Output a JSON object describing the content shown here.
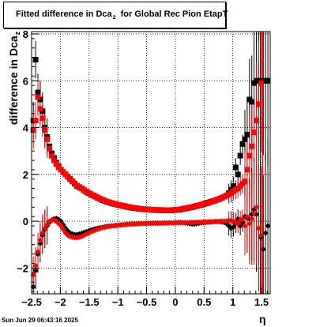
{
  "title": {
    "main": "Fitted difference in Dca",
    "subscript": "z",
    "rest": "for Global Rec Pion EtapT"
  },
  "footer": "Sun Jun 29 06:43:16 2025",
  "colors": {
    "black_series": "#000000",
    "red_series": "#ff0000",
    "grid": "#000000"
  },
  "chart_data": {
    "type": "scatter",
    "title": "Fitted difference in Dca_z for Global Rec Pion EtapT",
    "xlabel": "η",
    "ylabel": "difference in Dca_z",
    "xlim": [
      -2.5,
      1.65
    ],
    "ylim": [
      -3.1,
      8.1
    ],
    "x_ticks": [
      -2.5,
      -2,
      -1.5,
      -1,
      -0.5,
      0,
      0.5,
      1,
      1.5
    ],
    "x_tick_labels": [
      "−2.5",
      "−2",
      "−1.5",
      "−1",
      "−0.5",
      "0",
      "0.5",
      "1",
      "1.5"
    ],
    "y_ticks": [
      -2,
      0,
      2,
      4,
      6,
      8
    ],
    "y_tick_labels": [
      "−2",
      "0",
      "2",
      "4",
      "6",
      "8"
    ],
    "grid": true,
    "vertical_lines": [
      {
        "x": 1.48,
        "color": "#000000"
      },
      {
        "x": 1.52,
        "color": "#ff0000"
      }
    ],
    "series": [
      {
        "color": "#000000",
        "marker": "square",
        "x": [
          -2.47,
          -2.43,
          -2.39,
          -2.35,
          -2.31,
          -2.27,
          -2.23,
          -2.19,
          -2.15,
          -2.11,
          -2.07,
          -2.03,
          -1.99,
          -1.95,
          -1.91,
          -1.87,
          -1.83,
          -1.79,
          -1.75,
          -1.71,
          -1.67,
          -1.63,
          -1.59,
          -1.55,
          -1.51,
          -1.47,
          -1.43,
          -1.39,
          -1.35,
          -1.31,
          -1.27,
          -1.23,
          -1.19,
          -1.15,
          -1.11,
          -1.07,
          -1.03,
          -0.99,
          -0.95,
          -0.91,
          -0.87,
          -0.83,
          -0.79,
          -0.75,
          -0.71,
          -0.67,
          -0.63,
          -0.59,
          -0.55,
          -0.51,
          -0.47,
          -0.43,
          -0.39,
          -0.35,
          -0.31,
          -0.27,
          -0.23,
          -0.19,
          -0.15,
          -0.11,
          -0.07,
          -0.03,
          0.01,
          0.05,
          0.09,
          0.13,
          0.17,
          0.21,
          0.25,
          0.29,
          0.33,
          0.37,
          0.41,
          0.45,
          0.49,
          0.53,
          0.57,
          0.61,
          0.65,
          0.69,
          0.73,
          0.77,
          0.81,
          0.85,
          0.89,
          0.93,
          0.97,
          1.01,
          1.05,
          1.09,
          1.13,
          1.17,
          1.21,
          1.25,
          1.29,
          1.33,
          1.37,
          1.41,
          1.45,
          1.49,
          1.53,
          1.57,
          1.61
        ],
        "y": [
          4.3,
          6.9,
          5.5,
          5.2,
          4.7,
          4.0,
          3.6,
          3.2,
          2.9,
          2.7,
          2.5,
          2.35,
          2.2,
          2.1,
          2.0,
          1.9,
          1.8,
          1.7,
          1.6,
          1.5,
          1.45,
          1.4,
          1.32,
          1.25,
          1.2,
          1.15,
          1.1,
          1.05,
          1.0,
          0.95,
          0.9,
          0.87,
          0.83,
          0.8,
          0.77,
          0.74,
          0.72,
          0.7,
          0.67,
          0.65,
          0.63,
          0.61,
          0.59,
          0.57,
          0.56,
          0.55,
          0.53,
          0.52,
          0.51,
          0.5,
          0.5,
          0.49,
          0.48,
          0.48,
          0.47,
          0.47,
          0.47,
          0.46,
          0.46,
          0.46,
          0.46,
          0.47,
          0.48,
          0.49,
          0.5,
          0.52,
          0.54,
          0.56,
          0.58,
          0.6,
          0.62,
          0.65,
          0.67,
          0.7,
          0.73,
          0.76,
          0.78,
          0.82,
          0.85,
          0.88,
          0.92,
          0.95,
          1.0,
          1.05,
          1.1,
          1.2,
          1.35,
          1.5,
          2.3,
          2.0,
          2.8,
          3.3,
          3.5,
          3.7,
          5.2,
          5.1,
          5.9,
          6.0,
          6.0,
          6.0,
          6.0,
          6.0,
          6.0
        ]
      },
      {
        "color": "#ff0000",
        "marker": "square",
        "x": [
          -2.47,
          -2.43,
          -2.39,
          -2.35,
          -2.31,
          -2.27,
          -2.23,
          -2.19,
          -2.15,
          -2.11,
          -2.07,
          -2.03,
          -1.99,
          -1.95,
          -1.91,
          -1.87,
          -1.83,
          -1.79,
          -1.75,
          -1.71,
          -1.67,
          -1.63,
          -1.59,
          -1.55,
          -1.51,
          -1.47,
          -1.43,
          -1.39,
          -1.35,
          -1.31,
          -1.27,
          -1.23,
          -1.19,
          -1.15,
          -1.11,
          -1.07,
          -1.03,
          -0.99,
          -0.95,
          -0.91,
          -0.87,
          -0.83,
          -0.79,
          -0.75,
          -0.71,
          -0.67,
          -0.63,
          -0.59,
          -0.55,
          -0.51,
          -0.47,
          -0.43,
          -0.39,
          -0.35,
          -0.31,
          -0.27,
          -0.23,
          -0.19,
          -0.15,
          -0.11,
          -0.07,
          -0.03,
          0.01,
          0.05,
          0.09,
          0.13,
          0.17,
          0.21,
          0.25,
          0.29,
          0.33,
          0.37,
          0.41,
          0.45,
          0.49,
          0.53,
          0.57,
          0.61,
          0.65,
          0.69,
          0.73,
          0.77,
          0.81,
          0.85,
          0.89,
          0.93,
          0.97,
          1.01,
          1.05,
          1.09,
          1.13,
          1.17,
          1.21,
          1.25,
          1.29,
          1.33,
          1.37,
          1.41,
          1.45,
          1.49
        ],
        "y": [
          3.9,
          4.3,
          5.3,
          4.8,
          4.4,
          3.9,
          3.5,
          3.1,
          2.8,
          2.6,
          2.45,
          2.3,
          2.2,
          2.1,
          2.0,
          1.9,
          1.8,
          1.7,
          1.6,
          1.52,
          1.46,
          1.4,
          1.33,
          1.27,
          1.21,
          1.16,
          1.11,
          1.06,
          1.01,
          0.96,
          0.92,
          0.88,
          0.84,
          0.81,
          0.78,
          0.75,
          0.72,
          0.7,
          0.68,
          0.66,
          0.64,
          0.62,
          0.6,
          0.58,
          0.57,
          0.55,
          0.54,
          0.53,
          0.52,
          0.51,
          0.5,
          0.5,
          0.49,
          0.49,
          0.48,
          0.48,
          0.48,
          0.47,
          0.47,
          0.47,
          0.47,
          0.48,
          0.49,
          0.5,
          0.51,
          0.53,
          0.55,
          0.57,
          0.59,
          0.61,
          0.63,
          0.66,
          0.68,
          0.71,
          0.74,
          0.77,
          0.8,
          0.83,
          0.86,
          0.89,
          0.93,
          0.96,
          1.0,
          1.05,
          1.1,
          1.15,
          1.2,
          1.28,
          1.35,
          1.4,
          1.5,
          1.6,
          1.7,
          2.2,
          2.8,
          3.2,
          3.8,
          4.3,
          5.0,
          5.9
        ]
      },
      {
        "color": "#000000",
        "marker": "diamond",
        "x": [
          -2.47,
          -2.43,
          -2.39,
          -2.35,
          -2.31,
          -2.27,
          -2.23,
          -2.19,
          -2.15,
          -2.11,
          -2.07,
          -2.03,
          -1.99,
          -1.95,
          -1.91,
          -1.87,
          -1.83,
          -1.79,
          -1.75,
          -1.71,
          -1.67,
          -1.63,
          -1.59,
          -1.55,
          -1.51,
          -1.47,
          -1.43,
          -1.39,
          -1.35,
          -1.31,
          -1.27,
          -1.23,
          -1.19,
          -1.15,
          -1.11,
          -1.07,
          -1.03,
          -0.99,
          -0.95,
          -0.91,
          -0.87,
          -0.83,
          -0.79,
          -0.75,
          -0.71,
          -0.67,
          -0.63,
          -0.59,
          -0.55,
          -0.51,
          -0.47,
          -0.43,
          -0.39,
          -0.35,
          -0.31,
          -0.27,
          -0.23,
          -0.19,
          -0.15,
          -0.11,
          -0.07,
          -0.03,
          0.01,
          0.05,
          0.09,
          0.13,
          0.17,
          0.21,
          0.25,
          0.29,
          0.33,
          0.37,
          0.41,
          0.45,
          0.49,
          0.53,
          0.57,
          0.61,
          0.65,
          0.69,
          0.73,
          0.77,
          0.81,
          0.85,
          0.89,
          0.93,
          0.97,
          1.01,
          1.05,
          1.09,
          1.13,
          1.17,
          1.21,
          1.25,
          1.29,
          1.33,
          1.37,
          1.41,
          1.45,
          1.49,
          1.53,
          1.57,
          1.61
        ],
        "y": [
          -2.8,
          -2.1,
          -1.4,
          -0.95,
          -0.6,
          -0.35,
          -0.2,
          -0.05,
          0.05,
          0.1,
          0.12,
          0.08,
          0.0,
          -0.15,
          -0.3,
          -0.42,
          -0.5,
          -0.55,
          -0.57,
          -0.57,
          -0.55,
          -0.52,
          -0.48,
          -0.45,
          -0.42,
          -0.38,
          -0.35,
          -0.32,
          -0.3,
          -0.28,
          -0.26,
          -0.24,
          -0.22,
          -0.21,
          -0.2,
          -0.19,
          -0.18,
          -0.17,
          -0.16,
          -0.15,
          -0.14,
          -0.13,
          -0.12,
          -0.12,
          -0.11,
          -0.11,
          -0.1,
          -0.1,
          -0.1,
          -0.09,
          -0.09,
          -0.09,
          -0.08,
          -0.08,
          -0.08,
          -0.08,
          -0.08,
          -0.07,
          -0.07,
          -0.07,
          -0.07,
          -0.07,
          -0.06,
          -0.06,
          -0.05,
          -0.06,
          -0.07,
          -0.08,
          -0.1,
          -0.12,
          -0.12,
          -0.1,
          -0.08,
          -0.07,
          -0.06,
          -0.05,
          -0.04,
          -0.03,
          -0.03,
          -0.02,
          -0.02,
          -0.02,
          -0.03,
          -0.05,
          -0.1,
          -0.2,
          -0.3,
          -0.25,
          -0.1,
          0.1,
          -0.2,
          -0.05,
          0.2,
          0.15,
          0.1,
          0.3,
          0.5,
          0.3,
          -0.3,
          -0.7,
          -1.2,
          -0.5,
          -0.2
        ]
      },
      {
        "color": "#ff0000",
        "marker": "diamond",
        "x": [
          -2.47,
          -2.43,
          -2.39,
          -2.35,
          -2.31,
          -2.27,
          -2.23,
          -2.19,
          -2.15,
          -2.11,
          -2.07,
          -2.03,
          -1.99,
          -1.95,
          -1.91,
          -1.87,
          -1.83,
          -1.79,
          -1.75,
          -1.71,
          -1.67,
          -1.63,
          -1.59,
          -1.55,
          -1.51,
          -1.47,
          -1.43,
          -1.39,
          -1.35,
          -1.31,
          -1.27,
          -1.23,
          -1.19,
          -1.15,
          -1.11,
          -1.07,
          -1.03,
          -0.99,
          -0.95,
          -0.91,
          -0.87,
          -0.83,
          -0.79,
          -0.75,
          -0.71,
          -0.67,
          -0.63,
          -0.59,
          -0.55,
          -0.51,
          -0.47,
          -0.43,
          -0.39,
          -0.35,
          -0.31,
          -0.27,
          -0.23,
          -0.19,
          -0.15,
          -0.11,
          -0.07,
          -0.03,
          0.01,
          0.05,
          0.09,
          0.13,
          0.17,
          0.21,
          0.25,
          0.29,
          0.33,
          0.37,
          0.41,
          0.45,
          0.49,
          0.53,
          0.57,
          0.61,
          0.65,
          0.69,
          0.73,
          0.77,
          0.81,
          0.85,
          0.89,
          0.93,
          0.97,
          1.01,
          1.05,
          1.09,
          1.13,
          1.17,
          1.21,
          1.25,
          1.29,
          1.33,
          1.37,
          1.41,
          1.45,
          1.49
        ],
        "y": [
          -2.3,
          -1.9,
          -1.3,
          -0.8,
          -0.5,
          -0.3,
          -0.15,
          0.0,
          0.05,
          0.05,
          0.0,
          -0.1,
          -0.2,
          -0.35,
          -0.5,
          -0.6,
          -0.65,
          -0.68,
          -0.7,
          -0.7,
          -0.68,
          -0.65,
          -0.6,
          -0.55,
          -0.5,
          -0.46,
          -0.42,
          -0.38,
          -0.34,
          -0.31,
          -0.28,
          -0.26,
          -0.24,
          -0.22,
          -0.2,
          -0.19,
          -0.18,
          -0.17,
          -0.16,
          -0.15,
          -0.14,
          -0.13,
          -0.13,
          -0.12,
          -0.12,
          -0.11,
          -0.11,
          -0.1,
          -0.1,
          -0.1,
          -0.09,
          -0.09,
          -0.09,
          -0.09,
          -0.08,
          -0.08,
          -0.08,
          -0.08,
          -0.08,
          -0.07,
          -0.07,
          -0.07,
          -0.07,
          -0.07,
          -0.06,
          -0.06,
          -0.06,
          -0.06,
          -0.05,
          -0.05,
          -0.05,
          -0.04,
          -0.04,
          -0.04,
          -0.03,
          -0.03,
          -0.02,
          -0.02,
          -0.02,
          -0.01,
          -0.01,
          0.0,
          0.0,
          0.0,
          0.01,
          0.02,
          0.03,
          0.0,
          -0.05,
          -0.1,
          0.05,
          0.1,
          -0.2,
          0.2,
          -0.1,
          0.1,
          0.35,
          0.6,
          -0.3,
          -0.6
        ]
      }
    ]
  }
}
